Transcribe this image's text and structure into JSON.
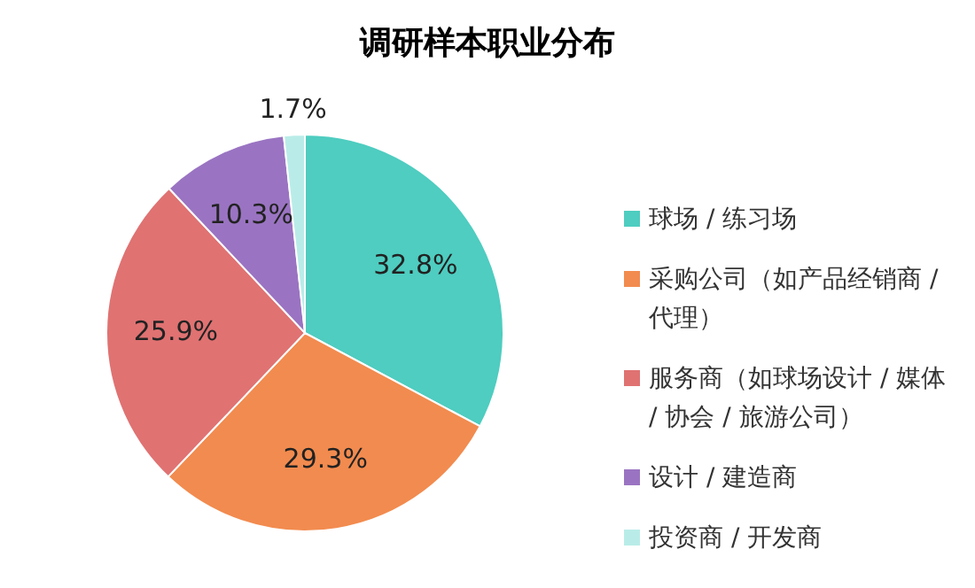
{
  "chart_data": {
    "type": "pie",
    "title": "调研样本职业分布",
    "categories": [
      "球场 / 练习场",
      "采购公司（如产品经销商 / 代理）",
      "服务商（如球场设计 / 媒体 / 协会 / 旅游公司）",
      "设计 / 建造商",
      "投资商 / 开发商"
    ],
    "values": [
      32.8,
      29.3,
      25.9,
      10.3,
      1.7
    ],
    "colors": [
      "#4ecdc0",
      "#f28b4f",
      "#e07272",
      "#9a74c2",
      "#b9ece8"
    ],
    "value_labels": [
      "32.8%",
      "29.3%",
      "25.9%",
      "10.3%",
      "1.7%"
    ],
    "legend": "right"
  }
}
